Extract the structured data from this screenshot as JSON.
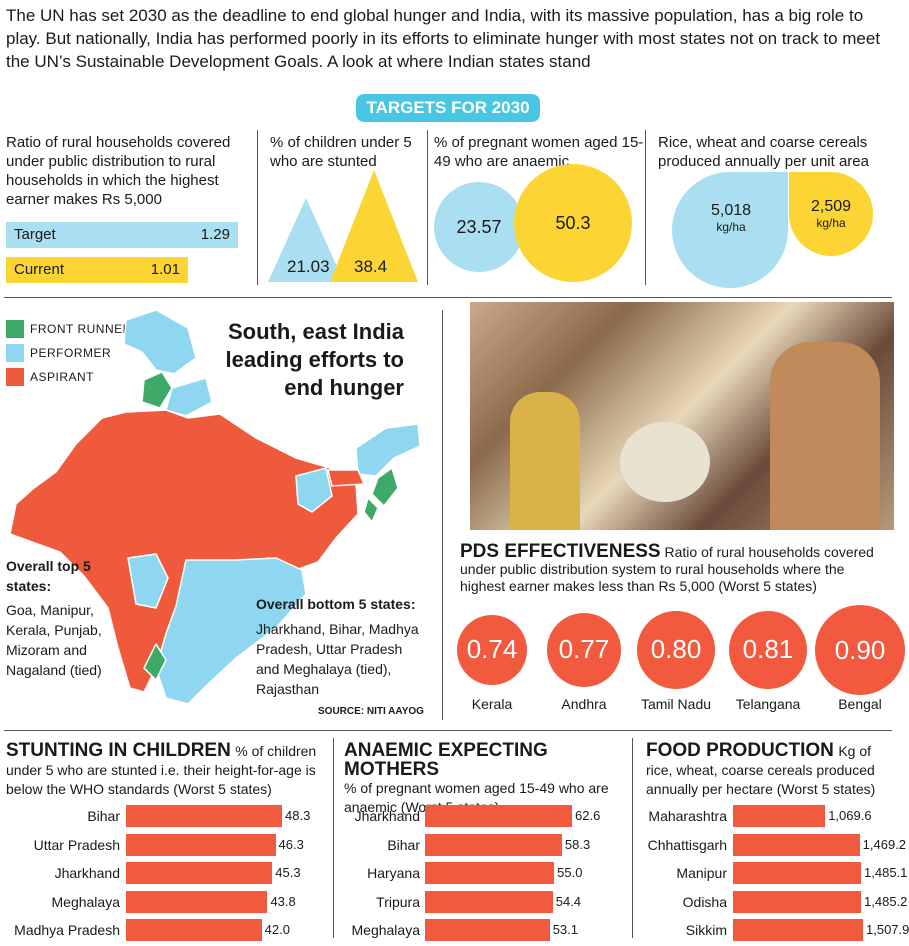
{
  "intro": "The UN has set 2030 as the deadline to end global hunger and India, with its massive population, has a big role to play. But nationally, India has performed poorly in its efforts to eliminate hunger with most states not on track to meet the UN’s Sustainable Development Goals. A look at where Indian states stand",
  "targets": {
    "banner": "TARGETS FOR 2030",
    "pds_label": "Ratio of rural households covered under public distribution to rural households in which the highest earner makes Rs 5,000",
    "target_label": "Target",
    "target_value": "1.29",
    "current_label": "Current",
    "current_value": "1.01",
    "stunted_label": "% of children under 5 who are stunted",
    "stunted_target": "21.03",
    "stunted_current": "38.4",
    "anaemic_label": "% of pregnant women aged 15-49 who are anaemic",
    "anaemic_target": "23.57",
    "anaemic_current": "50.3",
    "food_label": "Rice, wheat and coarse cereals produced annually per unit area",
    "food_target": "5,018",
    "food_current": "2,509",
    "food_unit": "kg/ha"
  },
  "map": {
    "title": "South, east India leading efforts to end hunger",
    "legend": [
      {
        "label": "FRONT RUNNER",
        "color": "#3daa6a"
      },
      {
        "label": "PERFORMER",
        "color": "#8fd6f0"
      },
      {
        "label": "ASPIRANT",
        "color": "#f05a3c"
      }
    ],
    "top_title": "Overall top 5 states:",
    "top_list": "Goa, Manipur, Kerala, Punjab, Mizoram and Nagaland (tied)",
    "bottom_title": "Overall bottom 5 states:",
    "bottom_list": "Jharkhand, Bihar, Madhya Pradesh, Uttar Pradesh and Meghalaya (tied), Rajasthan",
    "source": "SOURCE: NITI AAYOG"
  },
  "colors": {
    "accent": "#f15a3f",
    "target": "#a9dff0",
    "current": "#fcd535",
    "banner": "#49c6e2"
  },
  "chart_data": [
    {
      "type": "bar",
      "title": "PDS EFFECTIVENESS",
      "subtitle": "Ratio of rural households covered under public distribution system to rural households where the highest earner makes less than Rs 5,000 (Worst 5 states)",
      "categories": [
        "Kerala",
        "Andhra",
        "Tamil Nadu",
        "Telangana",
        "Bengal"
      ],
      "values": [
        0.74,
        0.77,
        0.8,
        0.81,
        0.9
      ],
      "labels": [
        "0.74",
        "0.77",
        "0.80",
        "0.81",
        "0.90"
      ]
    },
    {
      "type": "bar",
      "title": "STUNTING IN CHILDREN",
      "subtitle": "% of children under 5 who are stunted i.e. their height-for-age is below the WHO standards (Worst 5 states)",
      "categories": [
        "Bihar",
        "Uttar Pradesh",
        "Jharkhand",
        "Meghalaya",
        "Madhya Pradesh"
      ],
      "values": [
        48.3,
        46.3,
        45.3,
        43.8,
        42.0
      ],
      "labels": [
        "48.3",
        "46.3",
        "45.3",
        "43.8",
        "42.0"
      ]
    },
    {
      "type": "bar",
      "title": "ANAEMIC EXPECTING MOTHERS",
      "subtitle": "% of pregnant women aged 15-49 who are anaemic (Worst 5 states)",
      "categories": [
        "Jharkhand",
        "Bihar",
        "Haryana",
        "Tripura",
        "Meghalaya"
      ],
      "values": [
        62.6,
        58.3,
        55.0,
        54.4,
        53.1
      ],
      "labels": [
        "62.6",
        "58.3",
        "55.0",
        "54.4",
        "53.1"
      ]
    },
    {
      "type": "bar",
      "title": "FOOD PRODUCTION",
      "subtitle": "Kg of rice, wheat, coarse cereals produced annually per hectare (Worst 5 states)",
      "categories": [
        "Maharashtra",
        "Chhattisgarh",
        "Manipur",
        "Odisha",
        "Sikkim"
      ],
      "values": [
        1069.6,
        1469.2,
        1485.1,
        1485.2,
        1507.9
      ],
      "labels": [
        "1,069.6",
        "1,469.2",
        "1,485.1",
        "1,485.2",
        "1,507.9"
      ]
    }
  ]
}
